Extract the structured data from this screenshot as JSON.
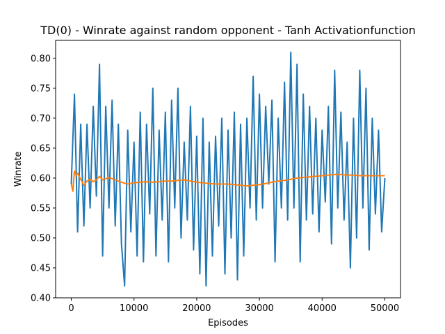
{
  "chart_data": {
    "type": "line",
    "title": "TD(0) - Winrate against random opponent - Tanh Activationfunction",
    "xlabel": "Episodes",
    "ylabel": "Winrate",
    "xlim": [
      -2500,
      52500
    ],
    "ylim": [
      0.4,
      0.83
    ],
    "xticks": [
      0,
      10000,
      20000,
      30000,
      40000,
      50000
    ],
    "xtick_labels": [
      "0",
      "10000",
      "20000",
      "30000",
      "40000",
      "50000"
    ],
    "yticks": [
      0.4,
      0.45,
      0.5,
      0.55,
      0.6,
      0.65,
      0.7,
      0.75,
      0.8
    ],
    "ytick_labels": [
      "0.40",
      "0.45",
      "0.50",
      "0.55",
      "0.60",
      "0.65",
      "0.70",
      "0.75",
      "0.80"
    ],
    "grid": false,
    "legend": "none",
    "series": [
      {
        "color": "#1f77b4",
        "x": [
          0,
          500,
          1000,
          1500,
          2000,
          2500,
          3000,
          3500,
          4000,
          4500,
          5000,
          5500,
          6000,
          6500,
          7000,
          7500,
          8000,
          8500,
          9000,
          9500,
          10000,
          10500,
          11000,
          11500,
          12000,
          12500,
          13000,
          13500,
          14000,
          14500,
          15000,
          15500,
          16000,
          16500,
          17000,
          17500,
          18000,
          18500,
          19000,
          19500,
          20000,
          20500,
          21000,
          21500,
          22000,
          22500,
          23000,
          23500,
          24000,
          24500,
          25000,
          25500,
          26000,
          26500,
          27000,
          27500,
          28000,
          28500,
          29000,
          29500,
          30000,
          30500,
          31000,
          31500,
          32000,
          32500,
          33000,
          33500,
          34000,
          34500,
          35000,
          35500,
          36000,
          36500,
          37000,
          37500,
          38000,
          38500,
          39000,
          39500,
          40000,
          40500,
          41000,
          41500,
          42000,
          42500,
          43000,
          43500,
          44000,
          44500,
          45000,
          45500,
          46000,
          46500,
          47000,
          47500,
          48000,
          48500,
          49000,
          49500,
          50000
        ],
        "values": [
          0.59,
          0.74,
          0.51,
          0.69,
          0.52,
          0.69,
          0.55,
          0.72,
          0.57,
          0.79,
          0.47,
          0.72,
          0.55,
          0.73,
          0.52,
          0.69,
          0.49,
          0.42,
          0.68,
          0.51,
          0.66,
          0.47,
          0.71,
          0.46,
          0.69,
          0.54,
          0.75,
          0.47,
          0.68,
          0.53,
          0.71,
          0.46,
          0.73,
          0.55,
          0.75,
          0.5,
          0.66,
          0.53,
          0.72,
          0.48,
          0.67,
          0.44,
          0.7,
          0.42,
          0.66,
          0.47,
          0.67,
          0.52,
          0.7,
          0.44,
          0.68,
          0.5,
          0.71,
          0.43,
          0.69,
          0.47,
          0.7,
          0.55,
          0.77,
          0.53,
          0.74,
          0.55,
          0.72,
          0.59,
          0.73,
          0.46,
          0.7,
          0.55,
          0.76,
          0.53,
          0.81,
          0.55,
          0.79,
          0.46,
          0.74,
          0.53,
          0.72,
          0.54,
          0.7,
          0.51,
          0.68,
          0.56,
          0.72,
          0.49,
          0.78,
          0.55,
          0.71,
          0.53,
          0.66,
          0.45,
          0.7,
          0.5,
          0.78,
          0.55,
          0.75,
          0.48,
          0.7,
          0.54,
          0.68,
          0.51,
          0.6
        ]
      },
      {
        "color": "#ff7f0e",
        "x": [
          0,
          250,
          500,
          750,
          1000,
          1500,
          2000,
          2500,
          3000,
          3500,
          4000,
          4500,
          5000,
          6000,
          7000,
          8000,
          9000,
          10000,
          11000,
          12000,
          13000,
          14000,
          15000,
          16000,
          17000,
          18000,
          19000,
          20000,
          21000,
          22000,
          23000,
          24000,
          25000,
          26000,
          27000,
          28000,
          29000,
          30000,
          31000,
          32000,
          33000,
          34000,
          35000,
          36000,
          37000,
          38000,
          39000,
          40000,
          41000,
          42000,
          43000,
          44000,
          45000,
          46000,
          47000,
          48000,
          49000,
          50000
        ],
        "values": [
          0.59,
          0.578,
          0.612,
          0.605,
          0.608,
          0.598,
          0.588,
          0.595,
          0.598,
          0.594,
          0.597,
          0.603,
          0.597,
          0.601,
          0.597,
          0.593,
          0.59,
          0.592,
          0.593,
          0.594,
          0.593,
          0.594,
          0.595,
          0.595,
          0.596,
          0.597,
          0.595,
          0.593,
          0.592,
          0.591,
          0.59,
          0.59,
          0.59,
          0.589,
          0.588,
          0.587,
          0.588,
          0.589,
          0.591,
          0.593,
          0.595,
          0.596,
          0.598,
          0.6,
          0.601,
          0.602,
          0.603,
          0.604,
          0.605,
          0.606,
          0.606,
          0.605,
          0.605,
          0.604,
          0.604,
          0.604,
          0.604,
          0.604
        ]
      }
    ]
  }
}
